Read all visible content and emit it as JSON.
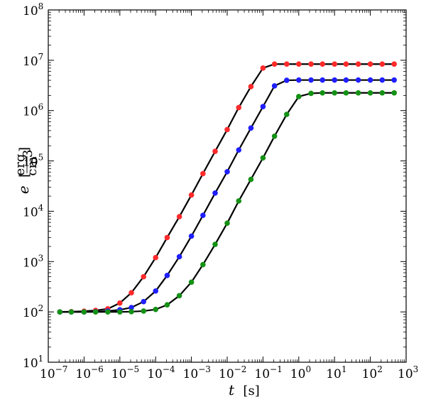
{
  "chart_data": {
    "type": "line",
    "title": "",
    "xlabel": {
      "symbol": "t",
      "unit": "s"
    },
    "ylabel": {
      "symbol": "e",
      "unit_num": "erg",
      "unit_den": "cm",
      "unit_den_exp": "3"
    },
    "x_scale": "log",
    "y_scale": "log",
    "xlim": [
      1e-07,
      1000.0
    ],
    "ylim": [
      10,
      100000000.0
    ],
    "grid": false,
    "legend": null,
    "x_ticks": [
      {
        "base": "10",
        "exp": "−7"
      },
      {
        "base": "10",
        "exp": "−6"
      },
      {
        "base": "10",
        "exp": "−5"
      },
      {
        "base": "10",
        "exp": "−4"
      },
      {
        "base": "10",
        "exp": "−3"
      },
      {
        "base": "10",
        "exp": "−2"
      },
      {
        "base": "10",
        "exp": "−1"
      },
      {
        "base": "10",
        "exp": "0"
      },
      {
        "base": "10",
        "exp": "1"
      },
      {
        "base": "10",
        "exp": "2"
      },
      {
        "base": "10",
        "exp": "3"
      }
    ],
    "y_ticks": [
      {
        "base": "10",
        "exp": "1"
      },
      {
        "base": "10",
        "exp": "2"
      },
      {
        "base": "10",
        "exp": "3"
      },
      {
        "base": "10",
        "exp": "4"
      },
      {
        "base": "10",
        "exp": "5"
      },
      {
        "base": "10",
        "exp": "6"
      },
      {
        "base": "10",
        "exp": "7"
      },
      {
        "base": "10",
        "exp": "8"
      }
    ],
    "line_color": "#000000",
    "series": [
      {
        "color": "#ff2a2a",
        "x": [
          2.1e-07,
          4.4e-07,
          1e-06,
          2.1e-06,
          4.6e-06,
          1e-05,
          2.1e-05,
          4.6e-05,
          0.0001,
          0.00021,
          0.00046,
          0.001,
          0.0021,
          0.0046,
          0.01,
          0.021,
          0.046,
          0.1,
          0.21,
          0.46,
          1,
          2.2,
          4.6,
          10,
          21,
          46,
          100,
          215,
          464
        ],
        "y": [
          100,
          101,
          103,
          107,
          115,
          150,
          240,
          500,
          1200,
          3000,
          7800,
          21000,
          56000,
          155000,
          420000,
          1150000,
          3000000,
          7000000,
          8400000,
          8400000,
          8400000,
          8400000,
          8400000,
          8400000,
          8400000,
          8400000,
          8400000,
          8400000,
          8400000
        ]
      },
      {
        "color": "#1f1fff",
        "x": [
          2.1e-07,
          4.4e-07,
          1e-06,
          2.1e-06,
          4.6e-06,
          1e-05,
          2.1e-05,
          4.6e-05,
          0.0001,
          0.00021,
          0.00046,
          0.001,
          0.0021,
          0.0046,
          0.01,
          0.021,
          0.046,
          0.1,
          0.21,
          0.46,
          1,
          2.2,
          4.6,
          10,
          21,
          46,
          100,
          215,
          464
        ],
        "y": [
          100,
          100,
          100,
          101,
          104,
          110,
          122,
          160,
          260,
          530,
          1250,
          3200,
          8300,
          23000,
          61000,
          165000,
          450000,
          1200000,
          3100000,
          4000000,
          4050000,
          4050000,
          4050000,
          4050000,
          4050000,
          4050000,
          4050000,
          4050000,
          4050000
        ]
      },
      {
        "color": "#159115",
        "x": [
          2.1e-07,
          4.4e-07,
          1e-06,
          2.1e-06,
          4.6e-06,
          1e-05,
          2.1e-05,
          4.6e-05,
          0.0001,
          0.00021,
          0.00046,
          0.001,
          0.0021,
          0.0046,
          0.01,
          0.021,
          0.046,
          0.1,
          0.21,
          0.46,
          1,
          2.2,
          4.6,
          10,
          21,
          46,
          100,
          215,
          464
        ],
        "y": [
          100,
          100,
          100,
          100,
          100,
          100,
          101,
          104,
          112,
          138,
          210,
          390,
          870,
          2200,
          5800,
          16000,
          43000,
          115000,
          310000,
          840000,
          1900000,
          2200000,
          2250000,
          2250000,
          2250000,
          2250000,
          2250000,
          2250000,
          2250000
        ]
      }
    ]
  }
}
